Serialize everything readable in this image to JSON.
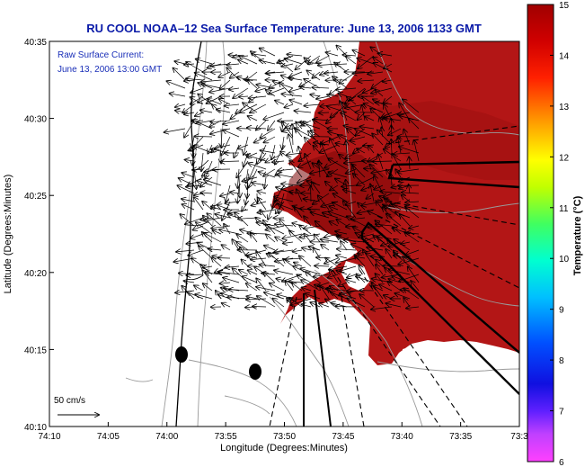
{
  "title": "RU COOL  NOAA–12  Sea Surface Temperature:  June 13, 2006 1133 GMT",
  "legend_top": "Raw Surface Current:",
  "legend_date": "June 13, 2006 13:00 GMT",
  "x_axis_label": "Longitude (Degrees:Minutes)",
  "y_axis_label": "Latitude (Degrees:Minutes)",
  "colorbar_label": "Temperature (°C)",
  "scale_label": "50 cm/s",
  "x_ticks": [
    "74:10",
    "74:05",
    "74:00",
    "73:55",
    "73:50",
    "73:45",
    "73:40",
    "73:35",
    "73:3"
  ],
  "y_ticks": [
    "40:35",
    "40:30",
    "40:25",
    "40:20",
    "40:15",
    "40:10"
  ],
  "colorbar_ticks": [
    "15",
    "14",
    "13",
    "12",
    "11",
    "10",
    "9",
    "8",
    "7",
    "6"
  ],
  "colors": {
    "title": "#0a1aa8",
    "legend_text": "#1a2fb8",
    "sst_warm": "#b01616",
    "sst_dark": "#8c0c0c",
    "background": "#ffffff"
  },
  "colormap": [
    "#ff2bff",
    "#8a2be2",
    "#1010ff",
    "#0080ff",
    "#00e5ff",
    "#00ff80",
    "#b0ff00",
    "#ffff00",
    "#ffa000",
    "#ff3000",
    "#a00000"
  ]
}
